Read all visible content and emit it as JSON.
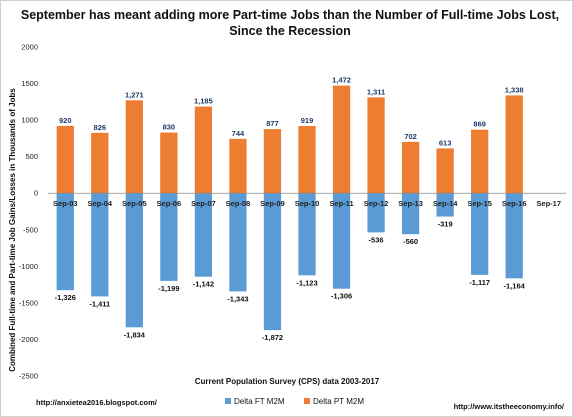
{
  "chart_data": {
    "type": "bar",
    "title_lines": [
      "September has meant adding more Part-time Jobs than the Number of Full-time Jobs Lost,",
      "Since the Recession"
    ],
    "xlabel": "Current Population Survey (CPS) data 2003-2017",
    "ylabel": "Combined Full-time and Part-time Job Gains/Losses in Thousands of Jobs",
    "ylim": [
      -2500,
      2000
    ],
    "yticks": [
      -2500,
      -2000,
      -1500,
      -1000,
      -500,
      0,
      500,
      1000,
      1500,
      2000
    ],
    "grid": false,
    "legend_position": "bottom",
    "categories": [
      "Sep-03",
      "Sep-04",
      "Sep-05",
      "Sep-06",
      "Sep-07",
      "Sep-08",
      "Sep-09",
      "Sep-10",
      "Sep-11",
      "Sep-12",
      "Sep-13",
      "Sep-14",
      "Sep-15",
      "Sep-16",
      "Sep-17"
    ],
    "series": [
      {
        "name": "Delta FT M2M",
        "color": "#5b9bd5",
        "values": [
          -1326,
          -1411,
          -1834,
          -1199,
          -1142,
          -1343,
          -1872,
          -1123,
          -1306,
          -536,
          -560,
          -319,
          -1117,
          -1164,
          null
        ],
        "labels": [
          "-1,326",
          "-1,411",
          "-1,834",
          "-1,199",
          "-1,142",
          "-1,343",
          "-1,872",
          "-1,123",
          "-1,306",
          "-536",
          "-560",
          "-319",
          "-1,117",
          "-1,164",
          ""
        ]
      },
      {
        "name": "Delta PT M2M",
        "color": "#ed7d31",
        "values": [
          920,
          826,
          1271,
          830,
          1185,
          744,
          877,
          919,
          1472,
          1311,
          702,
          613,
          869,
          1338,
          null
        ],
        "labels": [
          "920",
          "826",
          "1,271",
          "830",
          "1,185",
          "744",
          "877",
          "919",
          "1,472",
          "1,311",
          "702",
          "613",
          "869",
          "1,338",
          ""
        ]
      }
    ]
  },
  "footer": {
    "left": "http://anxietea2016.blogspot.com/",
    "right": "http://www.itstheeconomy.info/"
  }
}
